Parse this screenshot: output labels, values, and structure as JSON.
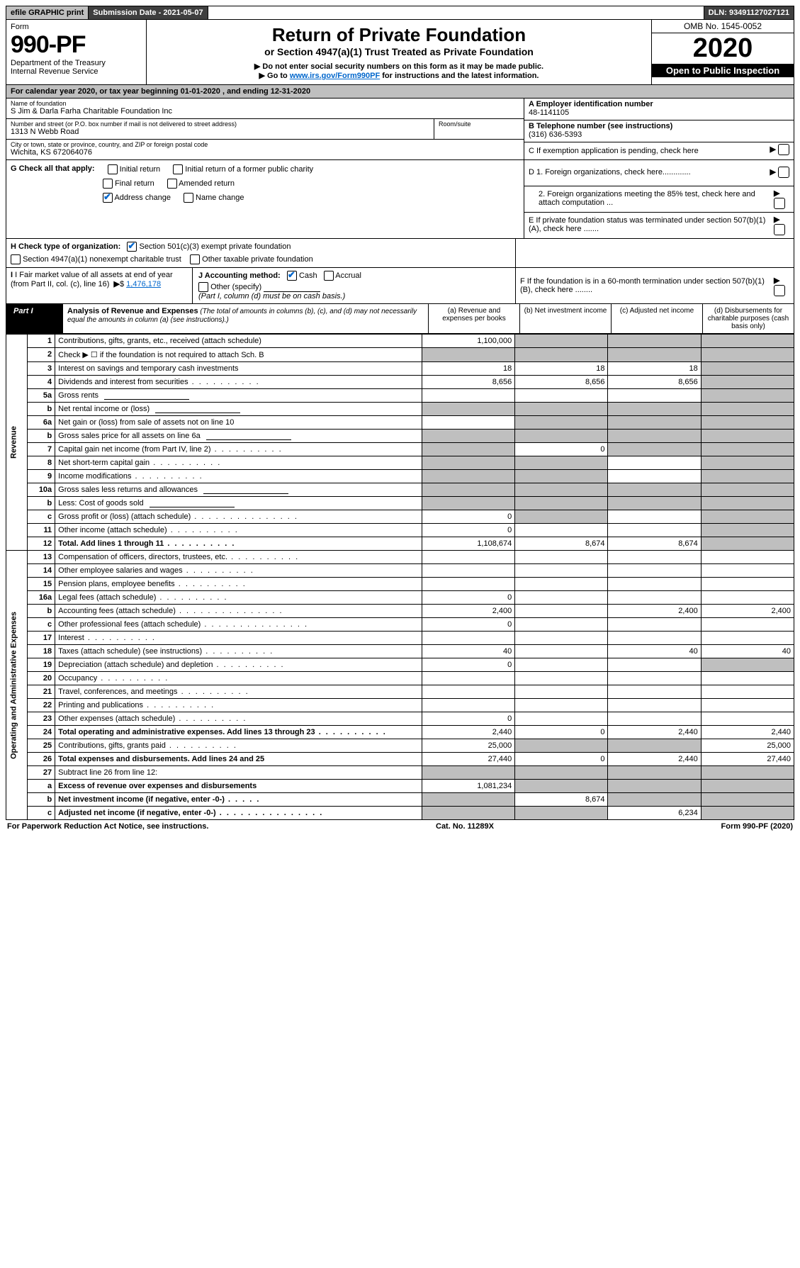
{
  "topbar": {
    "efile": "efile GRAPHIC print",
    "submission": "Submission Date - 2021-05-07",
    "dln": "DLN: 93491127027121"
  },
  "header": {
    "form_label": "Form",
    "form_num": "990-PF",
    "dept": "Department of the Treasury",
    "irs": "Internal Revenue Service",
    "title": "Return of Private Foundation",
    "subtitle": "or Section 4947(a)(1) Trust Treated as Private Foundation",
    "note1": "▶ Do not enter social security numbers on this form as it may be made public.",
    "note2_pre": "▶ Go to ",
    "note2_link": "www.irs.gov/Form990PF",
    "note2_post": " for instructions and the latest information.",
    "omb": "OMB No. 1545-0052",
    "year": "2020",
    "open": "Open to Public Inspection"
  },
  "cal_year": "For calendar year 2020, or tax year beginning 01-01-2020                         , and ending 12-31-2020",
  "id": {
    "name_lbl": "Name of foundation",
    "name": "S Jim & Darla Farha Charitable Foundation Inc",
    "addr_lbl": "Number and street (or P.O. box number if mail is not delivered to street address)",
    "addr": "1313 N Webb Road",
    "room_lbl": "Room/suite",
    "city_lbl": "City or town, state or province, country, and ZIP or foreign postal code",
    "city": "Wichita, KS  672064076",
    "A_lbl": "A Employer identification number",
    "A_val": "48-1141105",
    "B_lbl": "B Telephone number (see instructions)",
    "B_val": "(316) 636-5393",
    "C_lbl": "C  If exemption application is pending, check here"
  },
  "G": {
    "label": "G Check all that apply:",
    "initial": "Initial return",
    "initial_pc": "Initial return of a former public charity",
    "final": "Final return",
    "amended": "Amended return",
    "address": "Address change",
    "name": "Name change"
  },
  "D": {
    "d1": "D 1. Foreign organizations, check here.............",
    "d2": "2. Foreign organizations meeting the 85% test, check here and attach computation ...",
    "E": "E  If private foundation status was terminated under section 507(b)(1)(A), check here .......",
    "F": "F  If the foundation is in a 60-month termination under section 507(b)(1)(B), check here ........"
  },
  "H": {
    "label": "H Check type of organization:",
    "s501": "Section 501(c)(3) exempt private foundation",
    "s4947": "Section 4947(a)(1) nonexempt charitable trust",
    "other_tax": "Other taxable private foundation"
  },
  "I": {
    "label": "I Fair market value of all assets at end of year (from Part II, col. (c), line 16)",
    "val": "1,476,178"
  },
  "J": {
    "label": "J Accounting method:",
    "cash": "Cash",
    "accrual": "Accrual",
    "other": "Other (specify)",
    "note": "(Part I, column (d) must be on cash basis.)"
  },
  "part1": {
    "label": "Part I",
    "title": "Analysis of Revenue and Expenses",
    "title_note": " (The total of amounts in columns (b), (c), and (d) may not necessarily equal the amounts in column (a) (see instructions).)",
    "colA": "(a)  Revenue and expenses per books",
    "colB": "(b)  Net investment income",
    "colC": "(c)  Adjusted net income",
    "colD": "(d)  Disbursements for charitable purposes (cash basis only)",
    "rev_label": "Revenue",
    "exp_label": "Operating and Administrative Expenses",
    "rows": {
      "r1": {
        "n": "1",
        "d": "Contributions, gifts, grants, etc., received (attach schedule)",
        "a": "1,100,000",
        "shadeB": true,
        "shadeC": true,
        "shadeD": true
      },
      "r2": {
        "n": "2",
        "d": "Check ▶ ☐ if the foundation is not required to attach Sch. B",
        "a": "",
        "shadeA": true,
        "shadeB": true,
        "shadeC": true,
        "shadeD": true
      },
      "r3": {
        "n": "3",
        "d": "Interest on savings and temporary cash investments",
        "a": "18",
        "b": "18",
        "c": "18",
        "shadeD": true
      },
      "r4": {
        "n": "4",
        "d": "Dividends and interest from securities",
        "a": "8,656",
        "b": "8,656",
        "c": "8,656",
        "shadeD": true
      },
      "r5a": {
        "n": "5a",
        "d": "Gross rents",
        "shadeD": true
      },
      "r5b": {
        "n": "b",
        "d": "Net rental income or (loss)",
        "shadeA": true,
        "shadeB": true,
        "shadeC": true,
        "shadeD": true
      },
      "r6a": {
        "n": "6a",
        "d": "Net gain or (loss) from sale of assets not on line 10",
        "shadeB": true,
        "shadeC": true,
        "shadeD": true
      },
      "r6b": {
        "n": "b",
        "d": "Gross sales price for all assets on line 6a",
        "shadeA": true,
        "shadeB": true,
        "shadeC": true,
        "shadeD": true
      },
      "r7": {
        "n": "7",
        "d": "Capital gain net income (from Part IV, line 2)",
        "shadeA": true,
        "b": "0",
        "shadeC": true,
        "shadeD": true
      },
      "r8": {
        "n": "8",
        "d": "Net short-term capital gain",
        "shadeA": true,
        "shadeB": true,
        "shadeD": true
      },
      "r9": {
        "n": "9",
        "d": "Income modifications",
        "shadeA": true,
        "shadeB": true,
        "shadeD": true
      },
      "r10a": {
        "n": "10a",
        "d": "Gross sales less returns and allowances",
        "shadeA": true,
        "shadeB": true,
        "shadeC": true,
        "shadeD": true
      },
      "r10b": {
        "n": "b",
        "d": "Less: Cost of goods sold",
        "shadeA": true,
        "shadeB": true,
        "shadeC": true,
        "shadeD": true
      },
      "r10c": {
        "n": "c",
        "d": "Gross profit or (loss) (attach schedule)",
        "a": "0",
        "shadeB": true,
        "shadeD": true
      },
      "r11": {
        "n": "11",
        "d": "Other income (attach schedule)",
        "a": "0",
        "shadeD": true
      },
      "r12": {
        "n": "12",
        "d": "Total. Add lines 1 through 11",
        "bold": true,
        "a": "1,108,674",
        "b": "8,674",
        "c": "8,674",
        "shadeD": true
      },
      "r13": {
        "n": "13",
        "d": "Compensation of officers, directors, trustees, etc."
      },
      "r14": {
        "n": "14",
        "d": "Other employee salaries and wages"
      },
      "r15": {
        "n": "15",
        "d": "Pension plans, employee benefits"
      },
      "r16a": {
        "n": "16a",
        "d": "Legal fees (attach schedule)",
        "a": "0"
      },
      "r16b": {
        "n": "b",
        "d": "Accounting fees (attach schedule)",
        "a": "2,400",
        "c": "2,400",
        "dcol": "2,400"
      },
      "r16c": {
        "n": "c",
        "d": "Other professional fees (attach schedule)",
        "a": "0"
      },
      "r17": {
        "n": "17",
        "d": "Interest"
      },
      "r18": {
        "n": "18",
        "d": "Taxes (attach schedule) (see instructions)",
        "a": "40",
        "c": "40",
        "dcol": "40"
      },
      "r19": {
        "n": "19",
        "d": "Depreciation (attach schedule) and depletion",
        "a": "0",
        "shadeD": true
      },
      "r20": {
        "n": "20",
        "d": "Occupancy"
      },
      "r21": {
        "n": "21",
        "d": "Travel, conferences, and meetings"
      },
      "r22": {
        "n": "22",
        "d": "Printing and publications"
      },
      "r23": {
        "n": "23",
        "d": "Other expenses (attach schedule)",
        "a": "0"
      },
      "r24": {
        "n": "24",
        "d": "Total operating and administrative expenses. Add lines 13 through 23",
        "bold": true,
        "a": "2,440",
        "b": "0",
        "c": "2,440",
        "dcol": "2,440"
      },
      "r25": {
        "n": "25",
        "d": "Contributions, gifts, grants paid",
        "a": "25,000",
        "shadeB": true,
        "shadeC": true,
        "dcol": "25,000"
      },
      "r26": {
        "n": "26",
        "d": "Total expenses and disbursements. Add lines 24 and 25",
        "bold": true,
        "a": "27,440",
        "b": "0",
        "c": "2,440",
        "dcol": "27,440"
      },
      "r27": {
        "n": "27",
        "d": "Subtract line 26 from line 12:",
        "shadeA": true,
        "shadeB": true,
        "shadeC": true,
        "shadeD": true
      },
      "r27a": {
        "n": "a",
        "d": "Excess of revenue over expenses and disbursements",
        "bold": true,
        "a": "1,081,234",
        "shadeB": true,
        "shadeC": true,
        "shadeD": true
      },
      "r27b": {
        "n": "b",
        "d": "Net investment income (if negative, enter -0-)",
        "bold": true,
        "shadeA": true,
        "b": "8,674",
        "shadeC": true,
        "shadeD": true
      },
      "r27c": {
        "n": "c",
        "d": "Adjusted net income (if negative, enter -0-)",
        "bold": true,
        "shadeA": true,
        "shadeB": true,
        "c": "6,234",
        "shadeD": true
      }
    }
  },
  "footer": {
    "left": "For Paperwork Reduction Act Notice, see instructions.",
    "mid": "Cat. No. 11289X",
    "right": "Form 990-PF (2020)"
  }
}
